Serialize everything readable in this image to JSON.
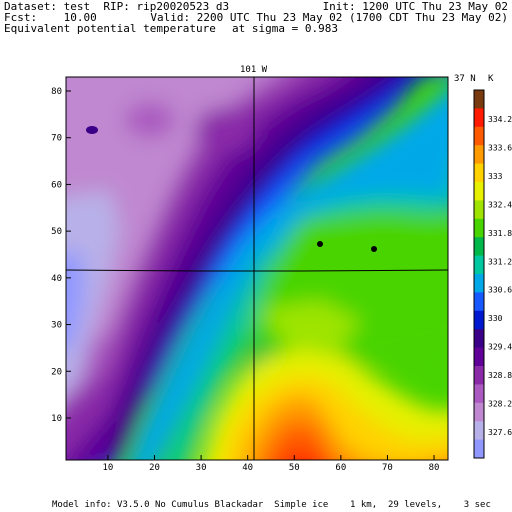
{
  "header": {
    "dataset_line": "Dataset: test  RIP: rip20020523 d3",
    "init_line": "Init: 1200 UTC Thu 23 May 02",
    "fcst_line": "Fcst:    10.00",
    "valid_line": "Valid: 2200 UTC Thu 23 May 02 (1700 CDT Thu 23 May 02)",
    "field_line": "Equivalent potential temperature",
    "sigma_line": "at sigma = 0.983"
  },
  "map": {
    "longitude_label": "101 W",
    "latitude_label": "37 N",
    "x_ticks": [
      "10",
      "20",
      "30",
      "40",
      "50",
      "60",
      "70",
      "80"
    ],
    "y_ticks": [
      "10",
      "20",
      "30",
      "40",
      "50",
      "60",
      "70",
      "80"
    ]
  },
  "colorbar": {
    "unit": "K",
    "labels": [
      "334.2",
      "333.6",
      "333",
      "332.4",
      "331.8",
      "331.2",
      "330.6",
      "330",
      "329.4",
      "328.8",
      "328.2",
      "327.6"
    ],
    "colors": [
      "#7a3a10",
      "#ff1a00",
      "#ff5a00",
      "#ff9a00",
      "#ffd200",
      "#e6f000",
      "#9ee400",
      "#48d400",
      "#00b84a",
      "#00c8a0",
      "#00a8e8",
      "#1858ff",
      "#0018d0",
      "#3a0088",
      "#600098",
      "#8a2aa8",
      "#aa5ac0",
      "#c088d0",
      "#b8b0e8",
      "#9098ff"
    ]
  },
  "footer": {
    "model_info": "Model info: V3.5.0 No Cumulus Blackadar  Simple ice    1 km,  29 levels,    3 sec"
  }
}
